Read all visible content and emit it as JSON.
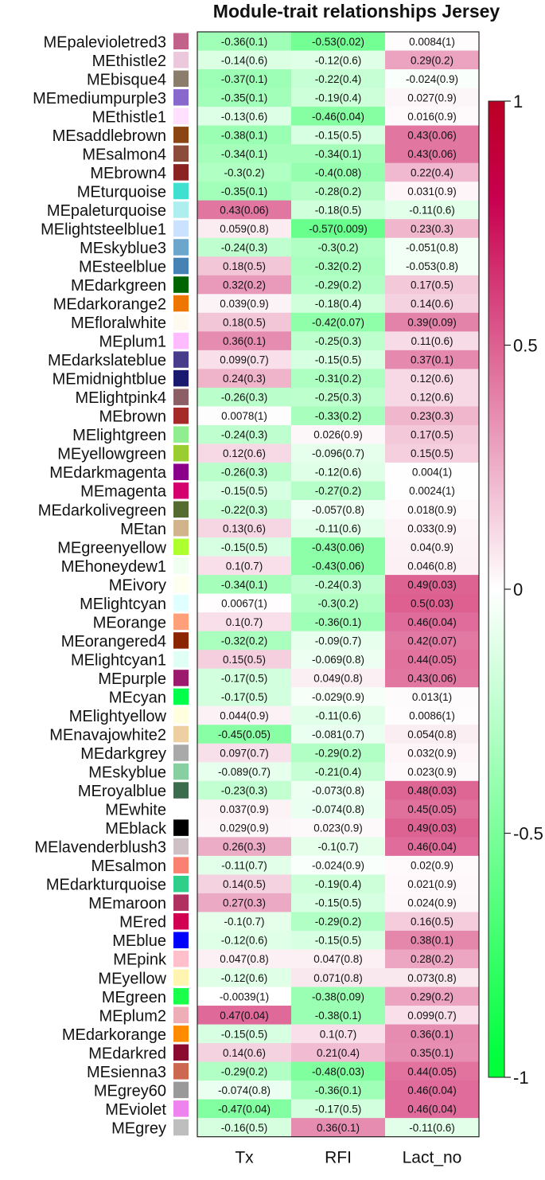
{
  "chart_data": {
    "type": "heatmap",
    "title": "Module-trait relationships Jersey",
    "columns": [
      "Tx",
      "RFI",
      "Lact_no"
    ],
    "rows": [
      {
        "module": "MEpalevioletred3",
        "color": "#c2628b",
        "values": [
          -0.36,
          -0.53,
          0.0084
        ],
        "labels": [
          "-0.36(0.1)",
          "-0.53(0.02)",
          "0.0084(1)"
        ]
      },
      {
        "module": "MEthistle2",
        "color": "#ecc8dc",
        "values": [
          -0.14,
          -0.12,
          0.29
        ],
        "labels": [
          "-0.14(0.6)",
          "-0.12(0.6)",
          "0.29(0.2)"
        ]
      },
      {
        "module": "MEbisque4",
        "color": "#8b7d6b",
        "values": [
          -0.37,
          -0.22,
          -0.024
        ],
        "labels": [
          "-0.37(0.1)",
          "-0.22(0.4)",
          "-0.024(0.9)"
        ]
      },
      {
        "module": "MEmediumpurple3",
        "color": "#8968cd",
        "values": [
          -0.35,
          -0.19,
          0.027
        ],
        "labels": [
          "-0.35(0.1)",
          "-0.19(0.4)",
          "0.027(0.9)"
        ]
      },
      {
        "module": "MEthistle1",
        "color": "#ffe1ff",
        "values": [
          -0.13,
          -0.46,
          0.016
        ],
        "labels": [
          "-0.13(0.6)",
          "-0.46(0.04)",
          "0.016(0.9)"
        ]
      },
      {
        "module": "MEsaddlebrown",
        "color": "#8b4513",
        "values": [
          -0.38,
          -0.15,
          0.43
        ],
        "labels": [
          "-0.38(0.1)",
          "-0.15(0.5)",
          "0.43(0.06)"
        ]
      },
      {
        "module": "MEsalmon4",
        "color": "#8b4c39",
        "values": [
          -0.34,
          -0.34,
          0.43
        ],
        "labels": [
          "-0.34(0.1)",
          "-0.34(0.1)",
          "0.43(0.06)"
        ]
      },
      {
        "module": "MEbrown4",
        "color": "#8b2323",
        "values": [
          -0.3,
          -0.4,
          0.22
        ],
        "labels": [
          "-0.3(0.2)",
          "-0.4(0.08)",
          "0.22(0.4)"
        ]
      },
      {
        "module": "MEturquoise",
        "color": "#40e0d0",
        "values": [
          -0.35,
          -0.28,
          0.031
        ],
        "labels": [
          "-0.35(0.1)",
          "-0.28(0.2)",
          "0.031(0.9)"
        ]
      },
      {
        "module": "MEpaleturquoise",
        "color": "#afeeee",
        "values": [
          0.43,
          -0.18,
          -0.11
        ],
        "labels": [
          "0.43(0.06)",
          "-0.18(0.5)",
          "-0.11(0.6)"
        ]
      },
      {
        "module": "MElightsteelblue1",
        "color": "#cae1ff",
        "values": [
          0.059,
          -0.57,
          0.23
        ],
        "labels": [
          "0.059(0.8)",
          "-0.57(0.009)",
          "0.23(0.3)"
        ]
      },
      {
        "module": "MEskyblue3",
        "color": "#6ca6cd",
        "values": [
          -0.24,
          -0.3,
          -0.051
        ],
        "labels": [
          "-0.24(0.3)",
          "-0.3(0.2)",
          "-0.051(0.8)"
        ]
      },
      {
        "module": "MEsteelblue",
        "color": "#4682b4",
        "values": [
          0.18,
          -0.32,
          -0.053
        ],
        "labels": [
          "0.18(0.5)",
          "-0.32(0.2)",
          "-0.053(0.8)"
        ]
      },
      {
        "module": "MEdarkgreen",
        "color": "#006400",
        "values": [
          0.32,
          -0.29,
          0.17
        ],
        "labels": [
          "0.32(0.2)",
          "-0.29(0.2)",
          "0.17(0.5)"
        ]
      },
      {
        "module": "MEdarkorange2",
        "color": "#ee7600",
        "values": [
          0.039,
          -0.18,
          0.14
        ],
        "labels": [
          "0.039(0.9)",
          "-0.18(0.4)",
          "0.14(0.6)"
        ]
      },
      {
        "module": "MEfloralwhite",
        "color": "#fffaf0",
        "values": [
          0.18,
          -0.42,
          0.39
        ],
        "labels": [
          "0.18(0.5)",
          "-0.42(0.07)",
          "0.39(0.09)"
        ]
      },
      {
        "module": "MEplum1",
        "color": "#ffbbff",
        "values": [
          0.36,
          -0.25,
          0.11
        ],
        "labels": [
          "0.36(0.1)",
          "-0.25(0.3)",
          "0.11(0.6)"
        ]
      },
      {
        "module": "MEdarkslateblue",
        "color": "#483d8b",
        "values": [
          0.099,
          -0.15,
          0.37
        ],
        "labels": [
          "0.099(0.7)",
          "-0.15(0.5)",
          "0.37(0.1)"
        ]
      },
      {
        "module": "MEmidnightblue",
        "color": "#191970",
        "values": [
          0.24,
          -0.31,
          0.12
        ],
        "labels": [
          "0.24(0.3)",
          "-0.31(0.2)",
          "0.12(0.6)"
        ]
      },
      {
        "module": "MElightpink4",
        "color": "#8b5f65",
        "values": [
          -0.26,
          -0.25,
          0.12
        ],
        "labels": [
          "-0.26(0.3)",
          "-0.25(0.3)",
          "0.12(0.6)"
        ]
      },
      {
        "module": "MEbrown",
        "color": "#a52a2a",
        "values": [
          0.0078,
          -0.33,
          0.23
        ],
        "labels": [
          "0.0078(1)",
          "-0.33(0.2)",
          "0.23(0.3)"
        ]
      },
      {
        "module": "MElightgreen",
        "color": "#90ee90",
        "values": [
          -0.24,
          0.026,
          0.17
        ],
        "labels": [
          "-0.24(0.3)",
          "0.026(0.9)",
          "0.17(0.5)"
        ]
      },
      {
        "module": "MEyellowgreen",
        "color": "#9acd32",
        "values": [
          0.12,
          -0.096,
          0.15
        ],
        "labels": [
          "0.12(0.6)",
          "-0.096(0.7)",
          "0.15(0.5)"
        ]
      },
      {
        "module": "MEdarkmagenta",
        "color": "#8b008b",
        "values": [
          -0.26,
          -0.12,
          0.004
        ],
        "labels": [
          "-0.26(0.3)",
          "-0.12(0.6)",
          "0.004(1)"
        ]
      },
      {
        "module": "MEmagenta",
        "color": "#d4006e",
        "values": [
          -0.15,
          -0.27,
          0.0024
        ],
        "labels": [
          "-0.15(0.5)",
          "-0.27(0.2)",
          "0.0024(1)"
        ]
      },
      {
        "module": "MEdarkolivegreen",
        "color": "#556b2f",
        "values": [
          -0.22,
          -0.057,
          0.018
        ],
        "labels": [
          "-0.22(0.3)",
          "-0.057(0.8)",
          "0.018(0.9)"
        ]
      },
      {
        "module": "MEtan",
        "color": "#d2b48c",
        "values": [
          0.13,
          -0.11,
          0.033
        ],
        "labels": [
          "0.13(0.6)",
          "-0.11(0.6)",
          "0.033(0.9)"
        ]
      },
      {
        "module": "MEgreenyellow",
        "color": "#adff2f",
        "values": [
          -0.15,
          -0.43,
          0.04
        ],
        "labels": [
          "-0.15(0.5)",
          "-0.43(0.06)",
          "0.04(0.9)"
        ]
      },
      {
        "module": "MEhoneydew1",
        "color": "#f0fff0",
        "values": [
          0.1,
          -0.43,
          0.046
        ],
        "labels": [
          "0.1(0.7)",
          "-0.43(0.06)",
          "0.046(0.8)"
        ]
      },
      {
        "module": "MEivory",
        "color": "#fffff0",
        "values": [
          -0.34,
          -0.24,
          0.49
        ],
        "labels": [
          "-0.34(0.1)",
          "-0.24(0.3)",
          "0.49(0.03)"
        ]
      },
      {
        "module": "MElightcyan",
        "color": "#e0ffff",
        "values": [
          0.0067,
          -0.3,
          0.5
        ],
        "labels": [
          "0.0067(1)",
          "-0.3(0.2)",
          "0.5(0.03)"
        ]
      },
      {
        "module": "MEorange",
        "color": "#ffa07a",
        "values": [
          0.1,
          -0.36,
          0.46
        ],
        "labels": [
          "0.1(0.7)",
          "-0.36(0.1)",
          "0.46(0.04)"
        ]
      },
      {
        "module": "MEorangered4",
        "color": "#8b2500",
        "values": [
          -0.32,
          -0.09,
          0.42
        ],
        "labels": [
          "-0.32(0.2)",
          "-0.09(0.7)",
          "0.42(0.07)"
        ]
      },
      {
        "module": "MElightcyan1",
        "color": "#e0fff5",
        "values": [
          0.15,
          -0.069,
          0.44
        ],
        "labels": [
          "0.15(0.5)",
          "-0.069(0.8)",
          "0.44(0.05)"
        ]
      },
      {
        "module": "MEpurple",
        "color": "#9b1a6e",
        "values": [
          -0.17,
          0.049,
          0.43
        ],
        "labels": [
          "-0.17(0.5)",
          "0.049(0.8)",
          "0.43(0.06)"
        ]
      },
      {
        "module": "MEcyan",
        "color": "#00ff4a",
        "values": [
          -0.17,
          -0.029,
          0.013
        ],
        "labels": [
          "-0.17(0.5)",
          "-0.029(0.9)",
          "0.013(1)"
        ]
      },
      {
        "module": "MElightyellow",
        "color": "#ffffe0",
        "values": [
          0.044,
          -0.11,
          0.0086
        ],
        "labels": [
          "0.044(0.9)",
          "-0.11(0.6)",
          "0.0086(1)"
        ]
      },
      {
        "module": "MEnavajowhite2",
        "color": "#eecfa1",
        "values": [
          -0.45,
          -0.081,
          0.054
        ],
        "labels": [
          "-0.45(0.05)",
          "-0.081(0.7)",
          "0.054(0.8)"
        ]
      },
      {
        "module": "MEdarkgrey",
        "color": "#a9a9a9",
        "values": [
          0.097,
          -0.29,
          0.032
        ],
        "labels": [
          "0.097(0.7)",
          "-0.29(0.2)",
          "0.032(0.9)"
        ]
      },
      {
        "module": "MEskyblue",
        "color": "#87cea0",
        "values": [
          -0.089,
          -0.21,
          0.023
        ],
        "labels": [
          "-0.089(0.7)",
          "-0.21(0.4)",
          "0.023(0.9)"
        ]
      },
      {
        "module": "MEroyalblue",
        "color": "#3d6b4e",
        "values": [
          -0.23,
          -0.073,
          0.48
        ],
        "labels": [
          "-0.23(0.3)",
          "-0.073(0.8)",
          "0.48(0.03)"
        ]
      },
      {
        "module": "MEwhite",
        "color": "#ffffff",
        "values": [
          0.037,
          -0.074,
          0.45
        ],
        "labels": [
          "0.037(0.9)",
          "-0.074(0.8)",
          "0.45(0.05)"
        ]
      },
      {
        "module": "MEblack",
        "color": "#000000",
        "values": [
          0.029,
          0.023,
          0.49
        ],
        "labels": [
          "0.029(0.9)",
          "0.023(0.9)",
          "0.49(0.03)"
        ]
      },
      {
        "module": "MElavenderblush3",
        "color": "#cdc1c5",
        "values": [
          0.26,
          -0.1,
          0.46
        ],
        "labels": [
          "0.26(0.3)",
          "-0.1(0.7)",
          "0.46(0.04)"
        ]
      },
      {
        "module": "MEsalmon",
        "color": "#fa8072",
        "values": [
          -0.11,
          -0.024,
          0.02
        ],
        "labels": [
          "-0.11(0.7)",
          "-0.024(0.9)",
          "0.02(0.9)"
        ]
      },
      {
        "module": "MEdarkturquoise",
        "color": "#2fcf8a",
        "values": [
          0.14,
          -0.19,
          0.021
        ],
        "labels": [
          "0.14(0.5)",
          "-0.19(0.4)",
          "0.021(0.9)"
        ]
      },
      {
        "module": "MEmaroon",
        "color": "#b03060",
        "values": [
          0.27,
          -0.15,
          0.024
        ],
        "labels": [
          "0.27(0.3)",
          "-0.15(0.5)",
          "0.024(0.9)"
        ]
      },
      {
        "module": "MEred",
        "color": "#d10050",
        "values": [
          -0.1,
          -0.29,
          0.16
        ],
        "labels": [
          "-0.1(0.7)",
          "-0.29(0.2)",
          "0.16(0.5)"
        ]
      },
      {
        "module": "MEblue",
        "color": "#0000ff",
        "values": [
          -0.12,
          -0.15,
          0.38
        ],
        "labels": [
          "-0.12(0.6)",
          "-0.15(0.5)",
          "0.38(0.1)"
        ]
      },
      {
        "module": "MEpink",
        "color": "#ffc0cb",
        "values": [
          0.047,
          0.047,
          0.28
        ],
        "labels": [
          "0.047(0.8)",
          "0.047(0.8)",
          "0.28(0.2)"
        ]
      },
      {
        "module": "MEyellow",
        "color": "#fff5b0",
        "values": [
          -0.12,
          0.071,
          0.073
        ],
        "labels": [
          "-0.12(0.6)",
          "0.071(0.8)",
          "0.073(0.8)"
        ]
      },
      {
        "module": "MEgreen",
        "color": "#1aff4a",
        "values": [
          -0.0039,
          -0.38,
          0.29
        ],
        "labels": [
          "-0.0039(1)",
          "-0.38(0.09)",
          "0.29(0.2)"
        ]
      },
      {
        "module": "MEplum2",
        "color": "#eeaeb8",
        "values": [
          0.47,
          -0.38,
          0.099
        ],
        "labels": [
          "0.47(0.04)",
          "-0.38(0.1)",
          "0.099(0.7)"
        ]
      },
      {
        "module": "MEdarkorange",
        "color": "#ff8c00",
        "values": [
          -0.15,
          0.1,
          0.36
        ],
        "labels": [
          "-0.15(0.5)",
          "0.1(0.7)",
          "0.36(0.1)"
        ]
      },
      {
        "module": "MEdarkred",
        "color": "#8b0a30",
        "values": [
          0.14,
          0.21,
          0.35
        ],
        "labels": [
          "0.14(0.6)",
          "0.21(0.4)",
          "0.35(0.1)"
        ]
      },
      {
        "module": "MEsienna3",
        "color": "#cd6850",
        "values": [
          -0.29,
          -0.48,
          0.44
        ],
        "labels": [
          "-0.29(0.2)",
          "-0.48(0.03)",
          "0.44(0.05)"
        ]
      },
      {
        "module": "MEgrey60",
        "color": "#999999",
        "values": [
          -0.074,
          -0.36,
          0.46
        ],
        "labels": [
          "-0.074(0.8)",
          "-0.36(0.1)",
          "0.46(0.04)"
        ]
      },
      {
        "module": "MEviolet",
        "color": "#ee82ee",
        "values": [
          -0.47,
          -0.17,
          0.46
        ],
        "labels": [
          "-0.47(0.04)",
          "-0.17(0.5)",
          "0.46(0.04)"
        ]
      },
      {
        "module": "MEgrey",
        "color": "#bebebe",
        "values": [
          -0.16,
          0.36,
          -0.11
        ],
        "labels": [
          "-0.16(0.5)",
          "0.36(0.1)",
          "-0.11(0.6)"
        ]
      }
    ],
    "colorscale": {
      "min": -1,
      "max": 1,
      "low_color": "#2bff5e",
      "mid_color": "#ffffff",
      "high_color": "#c8004f",
      "ticks": [
        1,
        0.5,
        0,
        -0.5,
        -1
      ],
      "tick_labels": [
        "1",
        "0.5",
        "0",
        "-0.5",
        "-1"
      ]
    },
    "legend_position": "right"
  }
}
